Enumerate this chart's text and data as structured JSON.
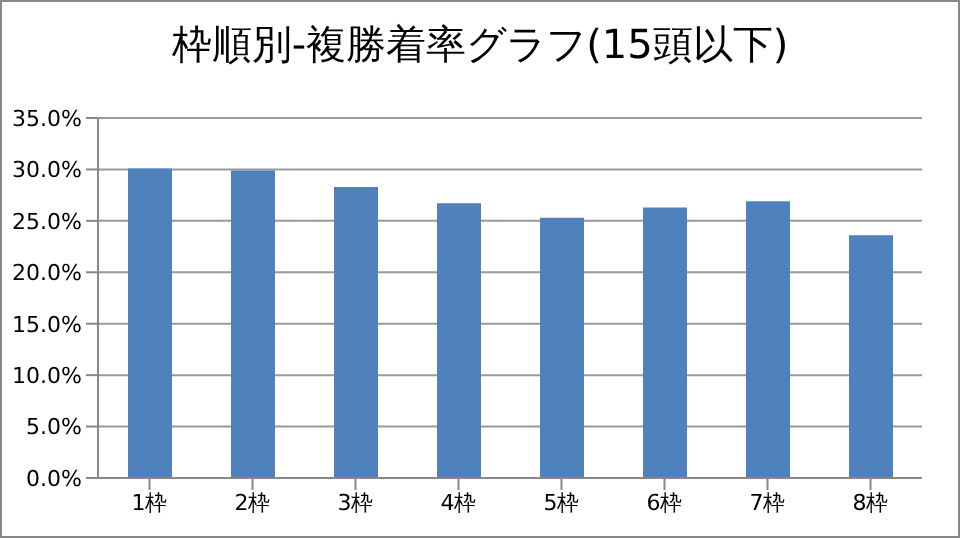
{
  "chart_data": {
    "type": "bar",
    "title": "枠順別-複勝着率グラフ(15頭以下)",
    "categories": [
      "1枠",
      "2枠",
      "3枠",
      "4枠",
      "5枠",
      "6枠",
      "7枠",
      "8枠"
    ],
    "values": [
      30.1,
      29.9,
      28.3,
      26.7,
      25.3,
      26.3,
      26.9,
      23.6
    ],
    "color": "#4f81bd",
    "ylim": [
      0,
      35
    ],
    "yticks": [
      {
        "value": 0,
        "label": "0.0%"
      },
      {
        "value": 5,
        "label": "5.0%"
      },
      {
        "value": 10,
        "label": "10.0%"
      },
      {
        "value": 15,
        "label": "15.0%"
      },
      {
        "value": 20,
        "label": "20.0%"
      },
      {
        "value": 25,
        "label": "25.0%"
      },
      {
        "value": 30,
        "label": "30.0%"
      },
      {
        "value": 35,
        "label": "35.0%"
      }
    ],
    "grid": "y"
  }
}
